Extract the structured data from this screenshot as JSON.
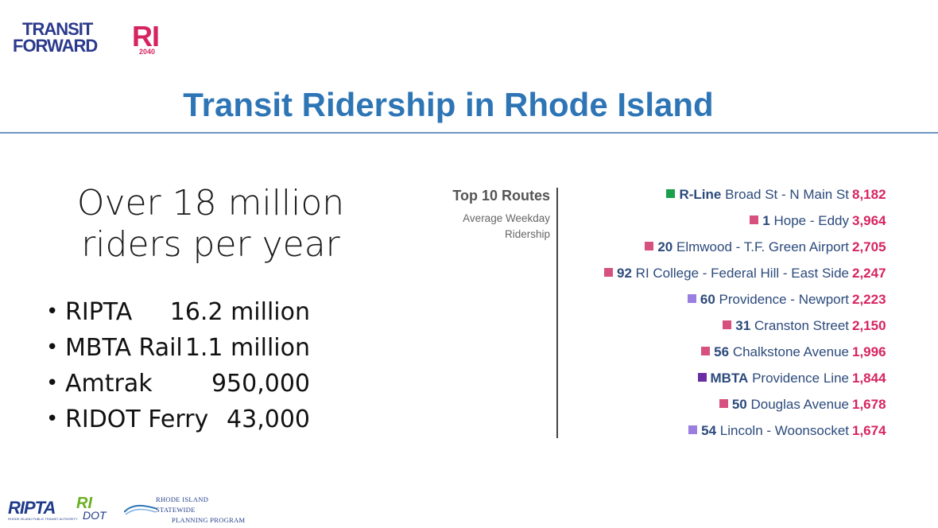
{
  "logo": {
    "line1": "TRANSIT",
    "line2": "FORWARD",
    "ri": "RI",
    "year": "2040"
  },
  "title": "Transit Ridership in Rhode Island",
  "headline": {
    "line1": "Over 18 million",
    "line2": "riders per year"
  },
  "stats": [
    {
      "bullet": "•",
      "name": "RIPTA",
      "value": "16.2 million"
    },
    {
      "bullet": "•",
      "name": "MBTA Rail",
      "value": "1.1 million"
    },
    {
      "bullet": "•",
      "name": "Amtrak",
      "value": "950,000"
    },
    {
      "bullet": "•",
      "name": "RIDOT Ferry",
      "value": "43,000"
    }
  ],
  "panel": {
    "heading": "Top 10 Routes",
    "sub1": "Average Weekday",
    "sub2": "Ridership"
  },
  "routes": [
    {
      "num": "R-Line",
      "name": "Broad St - N Main St",
      "count": "8,182",
      "color": "#1aa04b"
    },
    {
      "num": "1",
      "name": "Hope - Eddy",
      "count": "3,964",
      "color": "#d6517d"
    },
    {
      "num": "20",
      "name": "Elmwood - T.F. Green Airport",
      "count": "2,705",
      "color": "#d6517d"
    },
    {
      "num": "92",
      "name": "RI College - Federal Hill - East Side",
      "count": "2,247",
      "color": "#d6517d"
    },
    {
      "num": "60",
      "name": "Providence - Newport",
      "count": "2,223",
      "color": "#9b7fe0"
    },
    {
      "num": "31",
      "name": "Cranston Street",
      "count": "2,150",
      "color": "#d6517d"
    },
    {
      "num": "56",
      "name": "Chalkstone Avenue",
      "count": "1,996",
      "color": "#d6517d"
    },
    {
      "num": "MBTA",
      "name": "Providence Line",
      "count": "1,844",
      "color": "#6a2ea3"
    },
    {
      "num": "50",
      "name": "Douglas Avenue",
      "count": "1,678",
      "color": "#d6517d"
    },
    {
      "num": "54",
      "name": "Lincoln - Woonsocket",
      "count": "1,674",
      "color": "#9b7fe0"
    }
  ],
  "footer": {
    "ripta": "RIPTA",
    "ripta_sub": "RHODE ISLAND PUBLIC TRANSIT AUTHORITY",
    "ridot_a": "RI",
    "ridot_b": "DOT",
    "planning1": "RHODE ISLAND STATEWIDE",
    "planning2": "PLANNING PROGRAM"
  }
}
